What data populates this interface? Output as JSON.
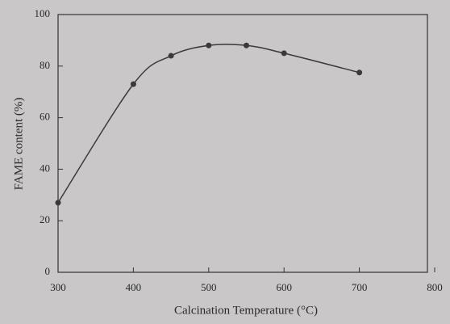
{
  "chart_data": {
    "type": "line",
    "xlabel": "Calcination Temperature (°C)",
    "ylabel": "FAME content (%)",
    "x": [
      300,
      400,
      450,
      500,
      550,
      600,
      700
    ],
    "series": [
      {
        "color": "#3a3a3a",
        "values": [
          27,
          73,
          84,
          88,
          88,
          85,
          77.5
        ]
      }
    ],
    "xlim": [
      300,
      800
    ],
    "xticks": [
      300,
      400,
      500,
      600,
      700,
      800
    ],
    "ylim": [
      0,
      100
    ],
    "yticks": [
      0,
      20,
      40,
      60,
      80,
      100
    ],
    "grid": false
  }
}
